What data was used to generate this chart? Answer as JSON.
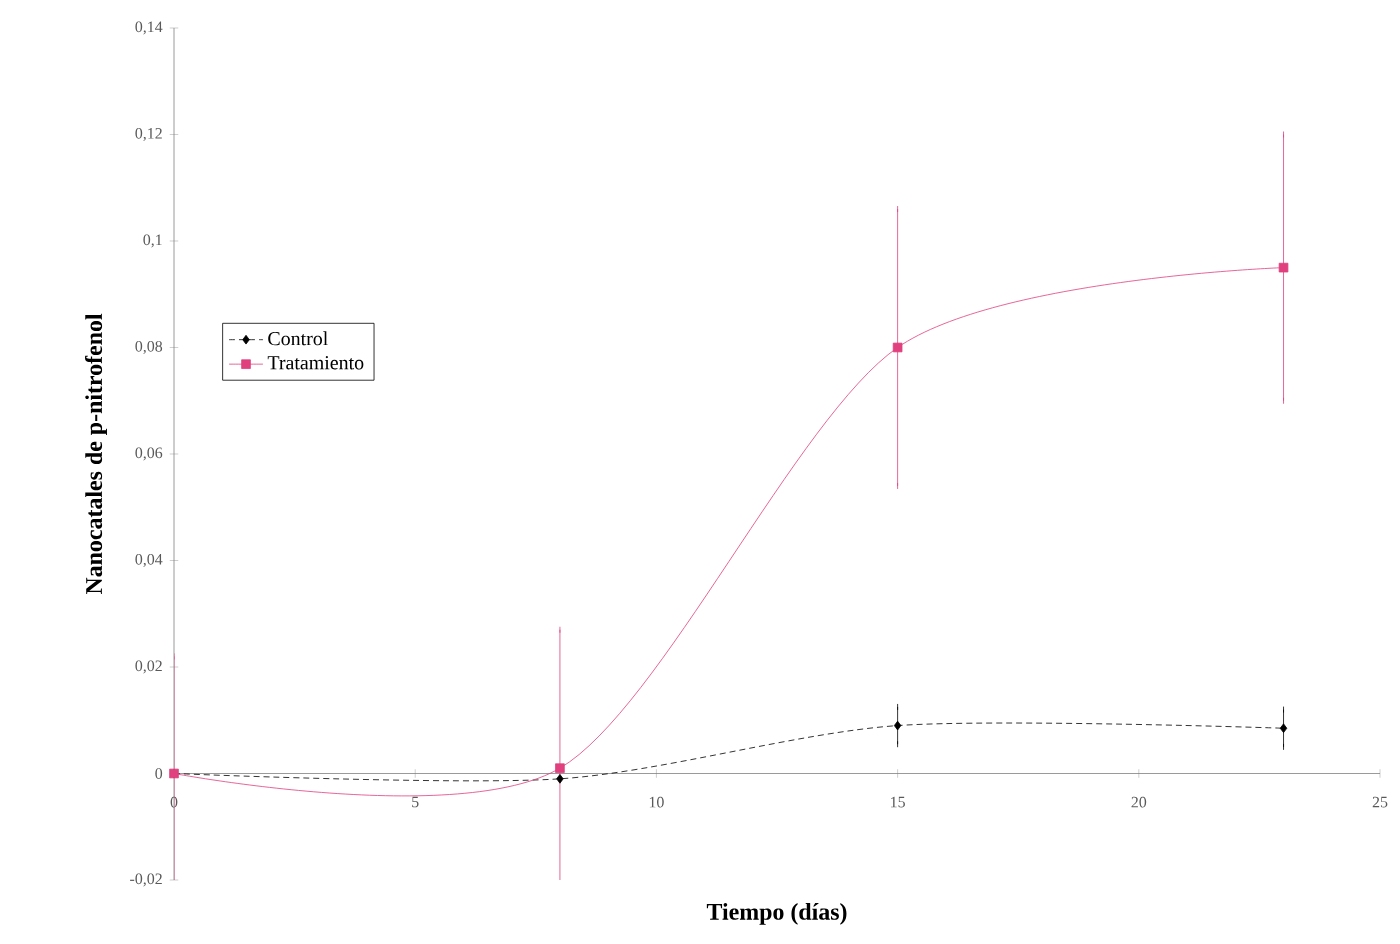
{
  "chart_data": {
    "type": "line",
    "xlabel": "Tiempo (días)",
    "ylabel": "Nanocatales de p-nitrofenol",
    "xlim": [
      0,
      25
    ],
    "xticks": [
      0,
      5,
      10,
      15,
      20,
      25
    ],
    "ylim": [
      -0.02,
      0.14
    ],
    "yticks": [
      {
        "value": -0.02,
        "label": "-0,02"
      },
      {
        "value": 0,
        "label": "0"
      },
      {
        "value": 0.02,
        "label": "0,02"
      },
      {
        "value": 0.04,
        "label": "0,04"
      },
      {
        "value": 0.06,
        "label": "0,06"
      },
      {
        "value": 0.08,
        "label": "0,08"
      },
      {
        "value": 0.1,
        "label": "0,1"
      },
      {
        "value": 0.12,
        "label": "0,12"
      },
      {
        "value": 0.14,
        "label": "0,14"
      }
    ],
    "legend": "left",
    "grid": false,
    "series": [
      {
        "name": "Control",
        "color": "#000000",
        "x": [
          0,
          8,
          15,
          23
        ],
        "values": [
          0,
          -0.001,
          0.009,
          0.0085
        ],
        "errors": [
          null,
          null,
          0.0035,
          0.0035
        ],
        "marker": "diamond",
        "line_style": "dashed"
      },
      {
        "name": "Tratamiento",
        "color": "#e0407e",
        "x": [
          0,
          8,
          15,
          23
        ],
        "values": [
          0,
          0.001,
          0.08,
          0.095
        ],
        "errors": [
          0.022,
          0.026,
          0.026,
          0.025
        ],
        "marker": "square",
        "line_style": "solid"
      }
    ]
  }
}
